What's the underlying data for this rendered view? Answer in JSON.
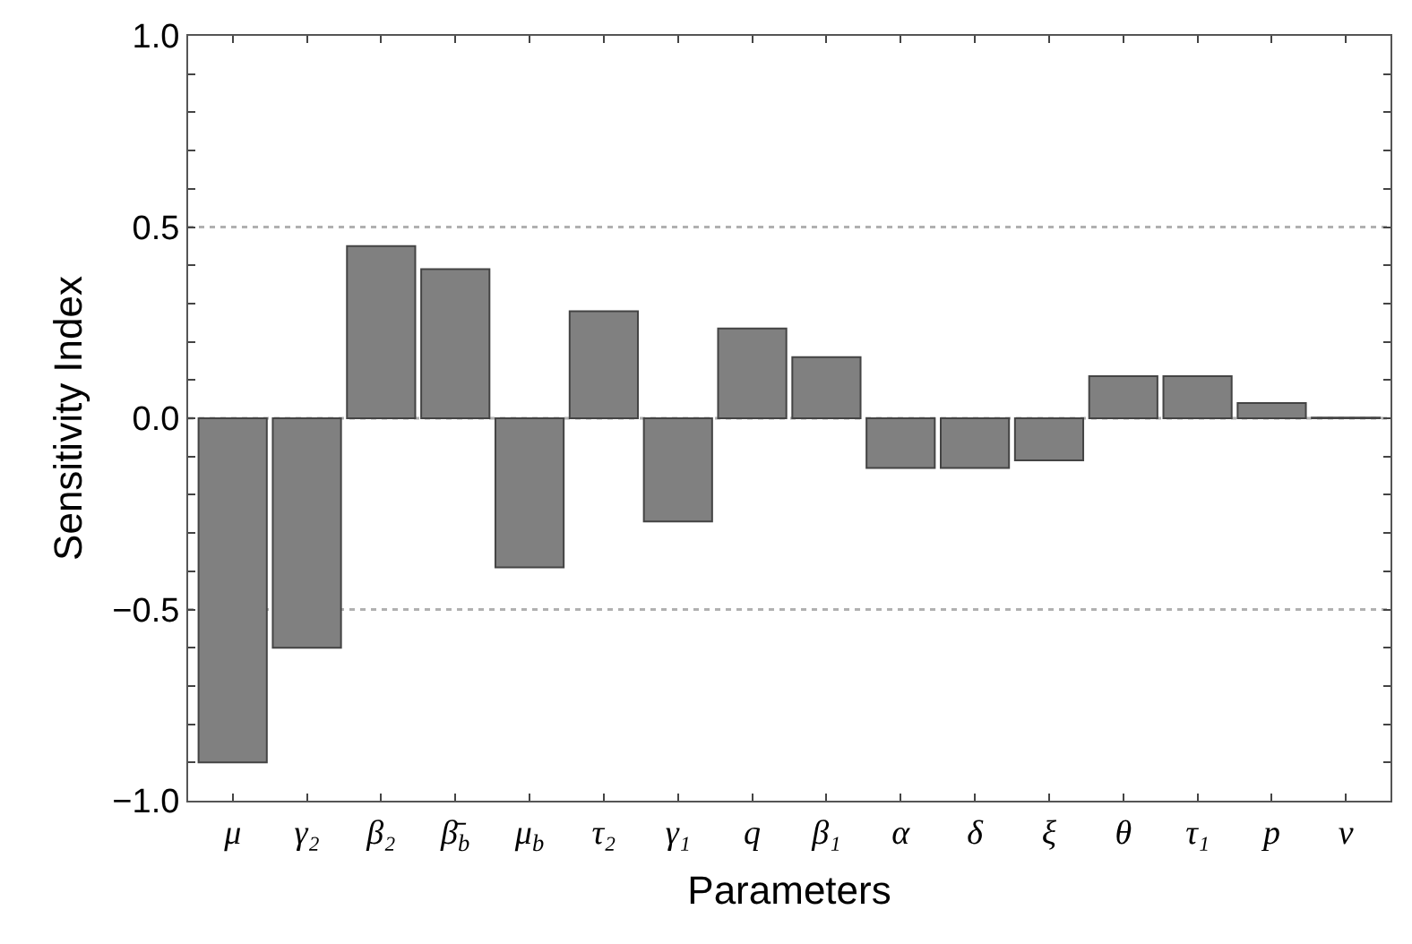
{
  "chart_data": {
    "type": "bar",
    "xlabel": "Parameters",
    "ylabel": "Sensitivity Index",
    "categories": [
      "μ",
      "γ₂",
      "β₂",
      "β̄$_{b}$",
      "μ$_{b}$",
      "τ₂",
      "γ₁",
      "q",
      "β₁",
      "α",
      "δ",
      "ξ",
      "θ",
      "τ₁",
      "p",
      "ν"
    ],
    "values": [
      -0.9,
      -0.6,
      0.45,
      0.39,
      -0.39,
      0.28,
      -0.27,
      0.235,
      0.16,
      -0.13,
      -0.13,
      -0.11,
      0.11,
      0.11,
      0.04,
      0.002
    ],
    "color": "#808080",
    "ylim": [
      -1.0,
      1.0
    ],
    "yticks": [
      {
        "value": -1.0,
        "label": "−1.0"
      },
      {
        "value": -0.9,
        "label": null
      },
      {
        "value": -0.8,
        "label": null
      },
      {
        "value": -0.7,
        "label": null
      },
      {
        "value": -0.6,
        "label": null
      },
      {
        "value": -0.5,
        "label": "−0.5"
      },
      {
        "value": -0.4,
        "label": null
      },
      {
        "value": -0.3,
        "label": null
      },
      {
        "value": -0.2,
        "label": null
      },
      {
        "value": -0.1,
        "label": null
      },
      {
        "value": 0.0,
        "label": "0.0"
      },
      {
        "value": 0.1,
        "label": null
      },
      {
        "value": 0.2,
        "label": null
      },
      {
        "value": 0.3,
        "label": null
      },
      {
        "value": 0.4,
        "label": null
      },
      {
        "value": 0.5,
        "label": "0.5"
      },
      {
        "value": 0.6,
        "label": null
      },
      {
        "value": 0.7,
        "label": null
      },
      {
        "value": 0.8,
        "label": null
      },
      {
        "value": 0.9,
        "label": null
      },
      {
        "value": 1.0,
        "label": "1.0"
      }
    ],
    "grid": "y"
  }
}
